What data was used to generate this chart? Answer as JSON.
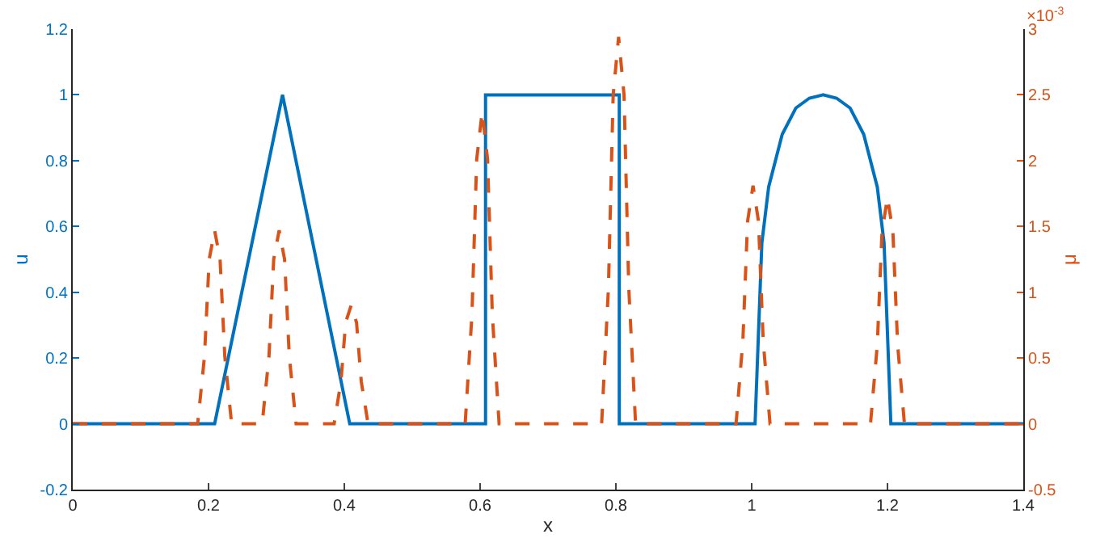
{
  "chart_data": {
    "type": "line",
    "xlabel": "x",
    "ylabel": "u",
    "y2label": "μ",
    "xlim": [
      0,
      1.4
    ],
    "xticks": [
      0,
      0.2,
      0.4,
      0.6,
      0.8,
      1,
      1.2,
      1.4
    ],
    "ylim": [
      -0.2,
      1.2
    ],
    "yticks": [
      -0.2,
      0,
      0.2,
      0.4,
      0.6,
      0.8,
      1,
      1.2
    ],
    "y2lim": [
      -0.5,
      3
    ],
    "y2ticks": [
      -0.5,
      0,
      0.5,
      1,
      1.5,
      2,
      2.5,
      3
    ],
    "marker": "none",
    "annotations": [
      "×10$^{-3}$"
    ],
    "series": [
      {
        "color": "#0072bd",
        "line_style": "solid",
        "x": [
          0,
          0.209,
          0.309,
          0.408,
          0.608,
          0.608,
          0.805,
          0.805,
          1.005,
          1.015,
          1.025,
          1.045,
          1.065,
          1.085,
          1.105,
          1.125,
          1.145,
          1.165,
          1.185,
          1.195,
          1.205,
          1.4
        ],
        "values": [
          0,
          0,
          1,
          0,
          0,
          1,
          1,
          0,
          0,
          0.55,
          0.72,
          0.88,
          0.96,
          0.99,
          1,
          0.99,
          0.96,
          0.88,
          0.72,
          0.55,
          0,
          0
        ]
      },
      {
        "color": "#d95319",
        "line_style": "dashed",
        "axis": "y2",
        "x": [
          0,
          0.184,
          0.194,
          0.201,
          0.209,
          0.217,
          0.224,
          0.234,
          0.279,
          0.289,
          0.296,
          0.304,
          0.312,
          0.319,
          0.329,
          0.385,
          0.395,
          0.402,
          0.41,
          0.418,
          0.425,
          0.435,
          0.578,
          0.588,
          0.595,
          0.603,
          0.611,
          0.618,
          0.628,
          0.779,
          0.789,
          0.796,
          0.804,
          0.812,
          0.819,
          0.829,
          0.977,
          0.987,
          0.994,
          1.002,
          1.01,
          1.017,
          1.027,
          1.175,
          1.185,
          1.192,
          1.2,
          1.208,
          1.215,
          1.225,
          1.4
        ],
        "values": [
          0,
          0,
          0.51,
          1.25,
          1.47,
          1.25,
          0.51,
          0,
          0,
          0.51,
          1.25,
          1.47,
          1.25,
          0.51,
          0,
          0,
          0.32,
          0.77,
          0.9,
          0.77,
          0.32,
          0,
          0,
          0.83,
          2.01,
          2.37,
          2.01,
          0.83,
          0,
          0,
          1.03,
          2.5,
          2.94,
          2.5,
          1.03,
          0,
          0,
          0.63,
          1.54,
          1.81,
          1.54,
          0.63,
          0,
          0,
          0.6,
          1.46,
          1.72,
          1.46,
          0.6,
          0,
          0
        ]
      }
    ]
  }
}
